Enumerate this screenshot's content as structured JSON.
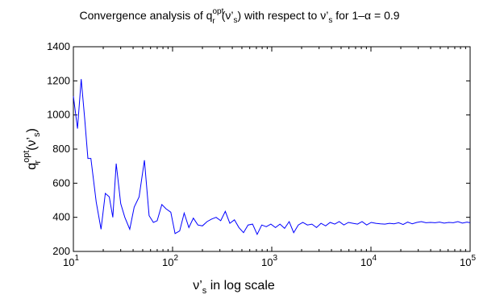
{
  "chart_data": {
    "type": "line",
    "title_parts": {
      "prefix": "Convergence analysis of q",
      "sub1": "r",
      "sup1": "opt",
      "mid1": "(ν’",
      "sub2": "s",
      "mid2": ") with respect to ν’",
      "sub3": "s",
      "suffix": " for 1–α = 0.9"
    },
    "xlabel_parts": {
      "main": "ν’",
      "sub": "s",
      "suffix": " in log scale"
    },
    "ylabel_parts": {
      "main": "q",
      "sub": "r",
      "sup": "opt",
      "arg": "(ν’",
      "argsub": "s",
      "close": ")"
    },
    "xscale": "log",
    "xlim": [
      10,
      100000
    ],
    "ylim": [
      200,
      1400
    ],
    "yticks": [
      200,
      400,
      600,
      800,
      1000,
      1200,
      1400
    ],
    "ytick_labels": [
      "200",
      "400",
      "600",
      "800",
      "1000",
      "1200",
      "1400"
    ],
    "xticks": [
      10,
      100,
      1000,
      10000,
      100000
    ],
    "xtick_labels": [
      {
        "base": "10",
        "exp": "1"
      },
      {
        "base": "10",
        "exp": "2"
      },
      {
        "base": "10",
        "exp": "3"
      },
      {
        "base": "10",
        "exp": "4"
      },
      {
        "base": "10",
        "exp": "5"
      }
    ],
    "grid": false,
    "series": [
      {
        "color": "#0000ff",
        "x": [
          10,
          11,
          12,
          13,
          14,
          15,
          17,
          19,
          21,
          23,
          25,
          27,
          30,
          33,
          37,
          41,
          46,
          52,
          58,
          64,
          70,
          78,
          86,
          96,
          106,
          118,
          131,
          146,
          162,
          180,
          200,
          223,
          248,
          275,
          306,
          340,
          378,
          420,
          467,
          519,
          577,
          641,
          713,
          793,
          881,
          980,
          1089,
          1211,
          1346,
          1497,
          1664,
          1850,
          2056,
          2286,
          2541,
          2825,
          3140,
          3491,
          3881,
          4314,
          4796,
          5332,
          5927,
          6589,
          7325,
          8143,
          9052,
          10063,
          11187,
          12437,
          13826,
          15370,
          17086,
          18994,
          21115,
          23474,
          26095,
          29009,
          32249,
          35850,
          39853,
          44304,
          49252,
          54752,
          60866,
          67663,
          75219,
          83619,
          92957,
          100000
        ],
        "values": [
          1110,
          920,
          1210,
          980,
          745,
          745,
          490,
          330,
          540,
          520,
          400,
          715,
          480,
          400,
          330,
          460,
          520,
          735,
          410,
          370,
          380,
          475,
          450,
          430,
          305,
          320,
          425,
          340,
          395,
          355,
          350,
          375,
          390,
          400,
          380,
          435,
          365,
          385,
          340,
          310,
          355,
          360,
          300,
          355,
          345,
          360,
          340,
          360,
          335,
          375,
          310,
          355,
          370,
          355,
          360,
          340,
          365,
          350,
          370,
          360,
          375,
          355,
          370,
          365,
          360,
          375,
          355,
          370,
          365,
          362,
          360,
          365,
          362,
          368,
          358,
          372,
          362,
          370,
          375,
          368,
          370,
          368,
          372,
          366,
          370,
          368,
          375,
          366,
          372,
          368
        ]
      }
    ]
  }
}
